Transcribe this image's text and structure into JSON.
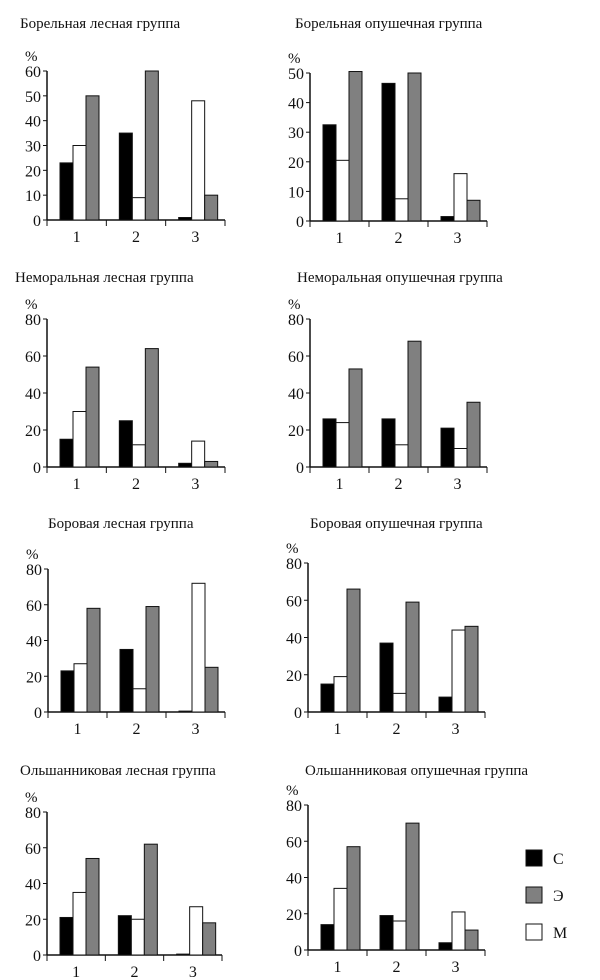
{
  "legend": [
    {
      "label": "С",
      "color": "#000000"
    },
    {
      "label": "Э",
      "color": "#808080"
    },
    {
      "label": "М",
      "color": "#ffffff"
    }
  ],
  "chart_data": [
    {
      "type": "bar",
      "title": "Борельная лесная группа",
      "ylabel": "%",
      "categories": [
        "1",
        "2",
        "3"
      ],
      "ylim": [
        0,
        60
      ],
      "yticks": [
        0,
        10,
        20,
        30,
        40,
        50,
        60
      ],
      "series": [
        {
          "name": "С",
          "values": [
            23,
            35,
            1
          ]
        },
        {
          "name": "М",
          "values": [
            30,
            9,
            48
          ]
        },
        {
          "name": "Э",
          "values": [
            50,
            60,
            10
          ]
        }
      ]
    },
    {
      "type": "bar",
      "title": "Борельная опушечная группа",
      "ylabel": "%",
      "categories": [
        "1",
        "2",
        "3"
      ],
      "ylim": [
        0,
        50
      ],
      "yticks": [
        0,
        10,
        20,
        30,
        40,
        50
      ],
      "series": [
        {
          "name": "С",
          "values": [
            32.5,
            46.5,
            1.5
          ]
        },
        {
          "name": "М",
          "values": [
            20.5,
            7.5,
            16
          ]
        },
        {
          "name": "Э",
          "values": [
            50.5,
            50,
            7
          ]
        }
      ]
    },
    {
      "type": "bar",
      "title": "Неморальная лесная группа",
      "ylabel": "%",
      "categories": [
        "1",
        "2",
        "3"
      ],
      "ylim": [
        0,
        80
      ],
      "yticks": [
        0,
        20,
        40,
        60,
        80
      ],
      "series": [
        {
          "name": "С",
          "values": [
            15,
            25,
            2
          ]
        },
        {
          "name": "М",
          "values": [
            30,
            12,
            14
          ]
        },
        {
          "name": "Э",
          "values": [
            54,
            64,
            3
          ]
        }
      ]
    },
    {
      "type": "bar",
      "title": "Неморальная опушечная группа",
      "ylabel": "%",
      "categories": [
        "1",
        "2",
        "3"
      ],
      "ylim": [
        0,
        80
      ],
      "yticks": [
        0,
        20,
        40,
        60,
        80
      ],
      "series": [
        {
          "name": "С",
          "values": [
            26,
            26,
            21
          ]
        },
        {
          "name": "М",
          "values": [
            24,
            12,
            10
          ]
        },
        {
          "name": "Э",
          "values": [
            53,
            68,
            35
          ]
        }
      ]
    },
    {
      "type": "bar",
      "title": "Боровая лесная группа",
      "ylabel": "%",
      "categories": [
        "1",
        "2",
        "3"
      ],
      "ylim": [
        0,
        80
      ],
      "yticks": [
        0,
        20,
        40,
        60,
        80
      ],
      "series": [
        {
          "name": "С",
          "values": [
            23,
            35,
            0.5
          ]
        },
        {
          "name": "М",
          "values": [
            27,
            13,
            72
          ]
        },
        {
          "name": "Э",
          "values": [
            58,
            59,
            25
          ]
        }
      ]
    },
    {
      "type": "bar",
      "title": "Боровая опушечная группа",
      "ylabel": "%",
      "categories": [
        "1",
        "2",
        "3"
      ],
      "ylim": [
        0,
        80
      ],
      "yticks": [
        0,
        20,
        40,
        60,
        80
      ],
      "series": [
        {
          "name": "С",
          "values": [
            15,
            37,
            8
          ]
        },
        {
          "name": "М",
          "values": [
            19,
            10,
            44
          ]
        },
        {
          "name": "Э",
          "values": [
            66,
            59,
            46
          ]
        }
      ]
    },
    {
      "type": "bar",
      "title": "Ольшанниковая лесная группа",
      "ylabel": "%",
      "categories": [
        "1",
        "2",
        "3"
      ],
      "ylim": [
        0,
        80
      ],
      "yticks": [
        0,
        20,
        40,
        60,
        80
      ],
      "series": [
        {
          "name": "С",
          "values": [
            21,
            22,
            0.5
          ]
        },
        {
          "name": "М",
          "values": [
            35,
            20,
            27
          ]
        },
        {
          "name": "Э",
          "values": [
            54,
            62,
            18
          ]
        }
      ]
    },
    {
      "type": "bar",
      "title": "Ольшанниковая опушечная группа",
      "ylabel": "%",
      "categories": [
        "1",
        "2",
        "3"
      ],
      "ylim": [
        0,
        80
      ],
      "yticks": [
        0,
        20,
        40,
        60,
        80
      ],
      "series": [
        {
          "name": "С",
          "values": [
            14,
            19,
            4
          ]
        },
        {
          "name": "М",
          "values": [
            34,
            16,
            21
          ]
        },
        {
          "name": "Э",
          "values": [
            57,
            70,
            11
          ]
        }
      ]
    }
  ]
}
